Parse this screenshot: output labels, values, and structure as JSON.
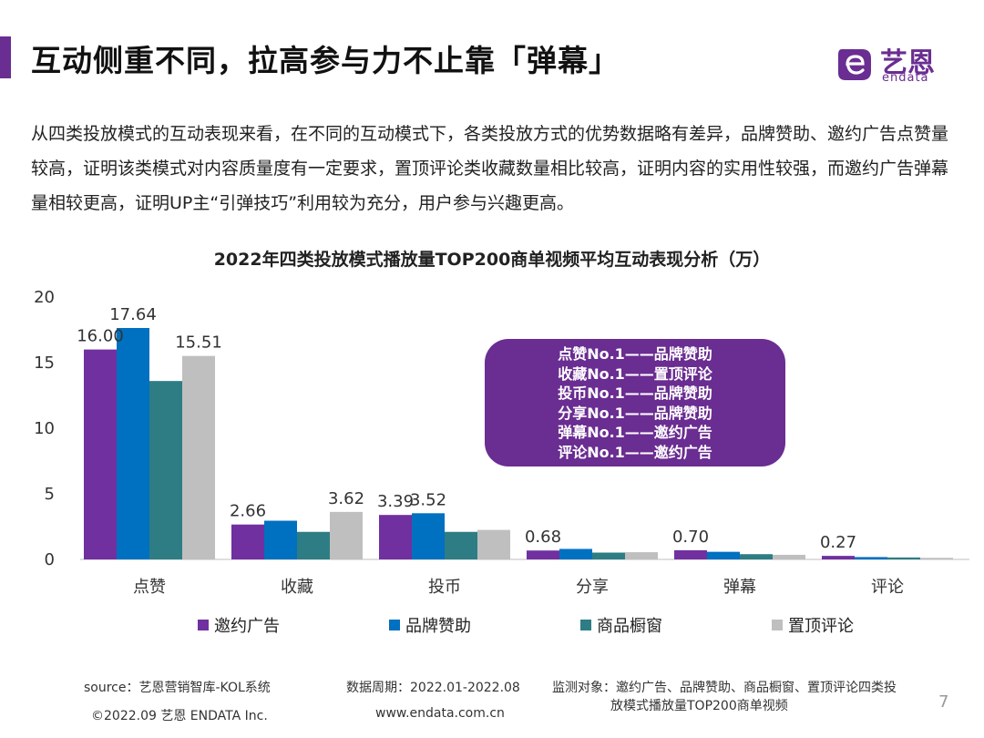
{
  "header": {
    "title": "互动侧重不同，拉高参与力不止靠「弹幕」",
    "logo_name": "艺恩",
    "logo_sub": "endata"
  },
  "intro_text": "从四类投放模式的互动表现来看，在不同的互动模式下，各类投放方式的优势数据略有差异，品牌赞助、邀约广告点赞量较高，证明该类模式对内容质量度有一定要求，置顶评论类收藏数量相比较高，证明内容的实用性较强，而邀约广告弹幕量相较更高，证明UP主“引弹技巧”利用较为充分，用户参与兴趣更高。",
  "callout": {
    "lines": [
      "点赞No.1——品牌赞助",
      "收藏No.1——置顶评论",
      "投币No.1——品牌赞助",
      "分享No.1——品牌赞助",
      "弹幕No.1——邀约广告",
      "评论No.1——邀约广告"
    ]
  },
  "chart_data": {
    "type": "bar",
    "title": "2022年四类投放模式播放量TOP200商单视频平均互动表现分析（万）",
    "categories": [
      "点赞",
      "收藏",
      "投币",
      "分享",
      "弹幕",
      "评论"
    ],
    "ylim": [
      0,
      20
    ],
    "yticks": [
      0,
      5,
      10,
      15,
      20
    ],
    "series": [
      {
        "name": "邀约广告",
        "color": "#7030a0",
        "values": [
          16.0,
          2.66,
          3.39,
          0.68,
          0.7,
          0.27
        ]
      },
      {
        "name": "品牌赞助",
        "color": "#0070c0",
        "values": [
          17.64,
          2.95,
          3.52,
          0.8,
          0.58,
          0.18
        ]
      },
      {
        "name": "商品橱窗",
        "color": "#2e7d84",
        "values": [
          13.6,
          2.1,
          2.1,
          0.52,
          0.4,
          0.15
        ]
      },
      {
        "name": "置顶评论",
        "color": "#bfbfbf",
        "values": [
          15.51,
          3.62,
          2.25,
          0.55,
          0.35,
          0.12
        ]
      }
    ],
    "data_labels": [
      {
        "series": 0,
        "category": 0,
        "text": "16.00"
      },
      {
        "series": 1,
        "category": 0,
        "text": "17.64"
      },
      {
        "series": 3,
        "category": 0,
        "text": "15.51"
      },
      {
        "series": 0,
        "category": 1,
        "text": "2.66"
      },
      {
        "series": 3,
        "category": 1,
        "text": "3.62"
      },
      {
        "series": 0,
        "category": 2,
        "text": "3.39"
      },
      {
        "series": 1,
        "category": 2,
        "text": "3.52"
      },
      {
        "series": 0,
        "category": 3,
        "text": "0.68"
      },
      {
        "series": 0,
        "category": 4,
        "text": "0.70"
      },
      {
        "series": 0,
        "category": 5,
        "text": "0.27"
      }
    ],
    "legend_position": "bottom"
  },
  "footer": {
    "source": "source：艺恩营销智库-KOL系统",
    "copyright": "©2022.09 艺恩 ENDATA Inc.",
    "period": "数据周期：2022.01-2022.08",
    "website": "www.endata.com.cn",
    "monitor_line1": "监测对象：邀约广告、品牌赞助、商品橱窗、置顶评论四类投",
    "monitor_line2": "放模式播放量TOP200商单视频",
    "page_number": "7"
  }
}
